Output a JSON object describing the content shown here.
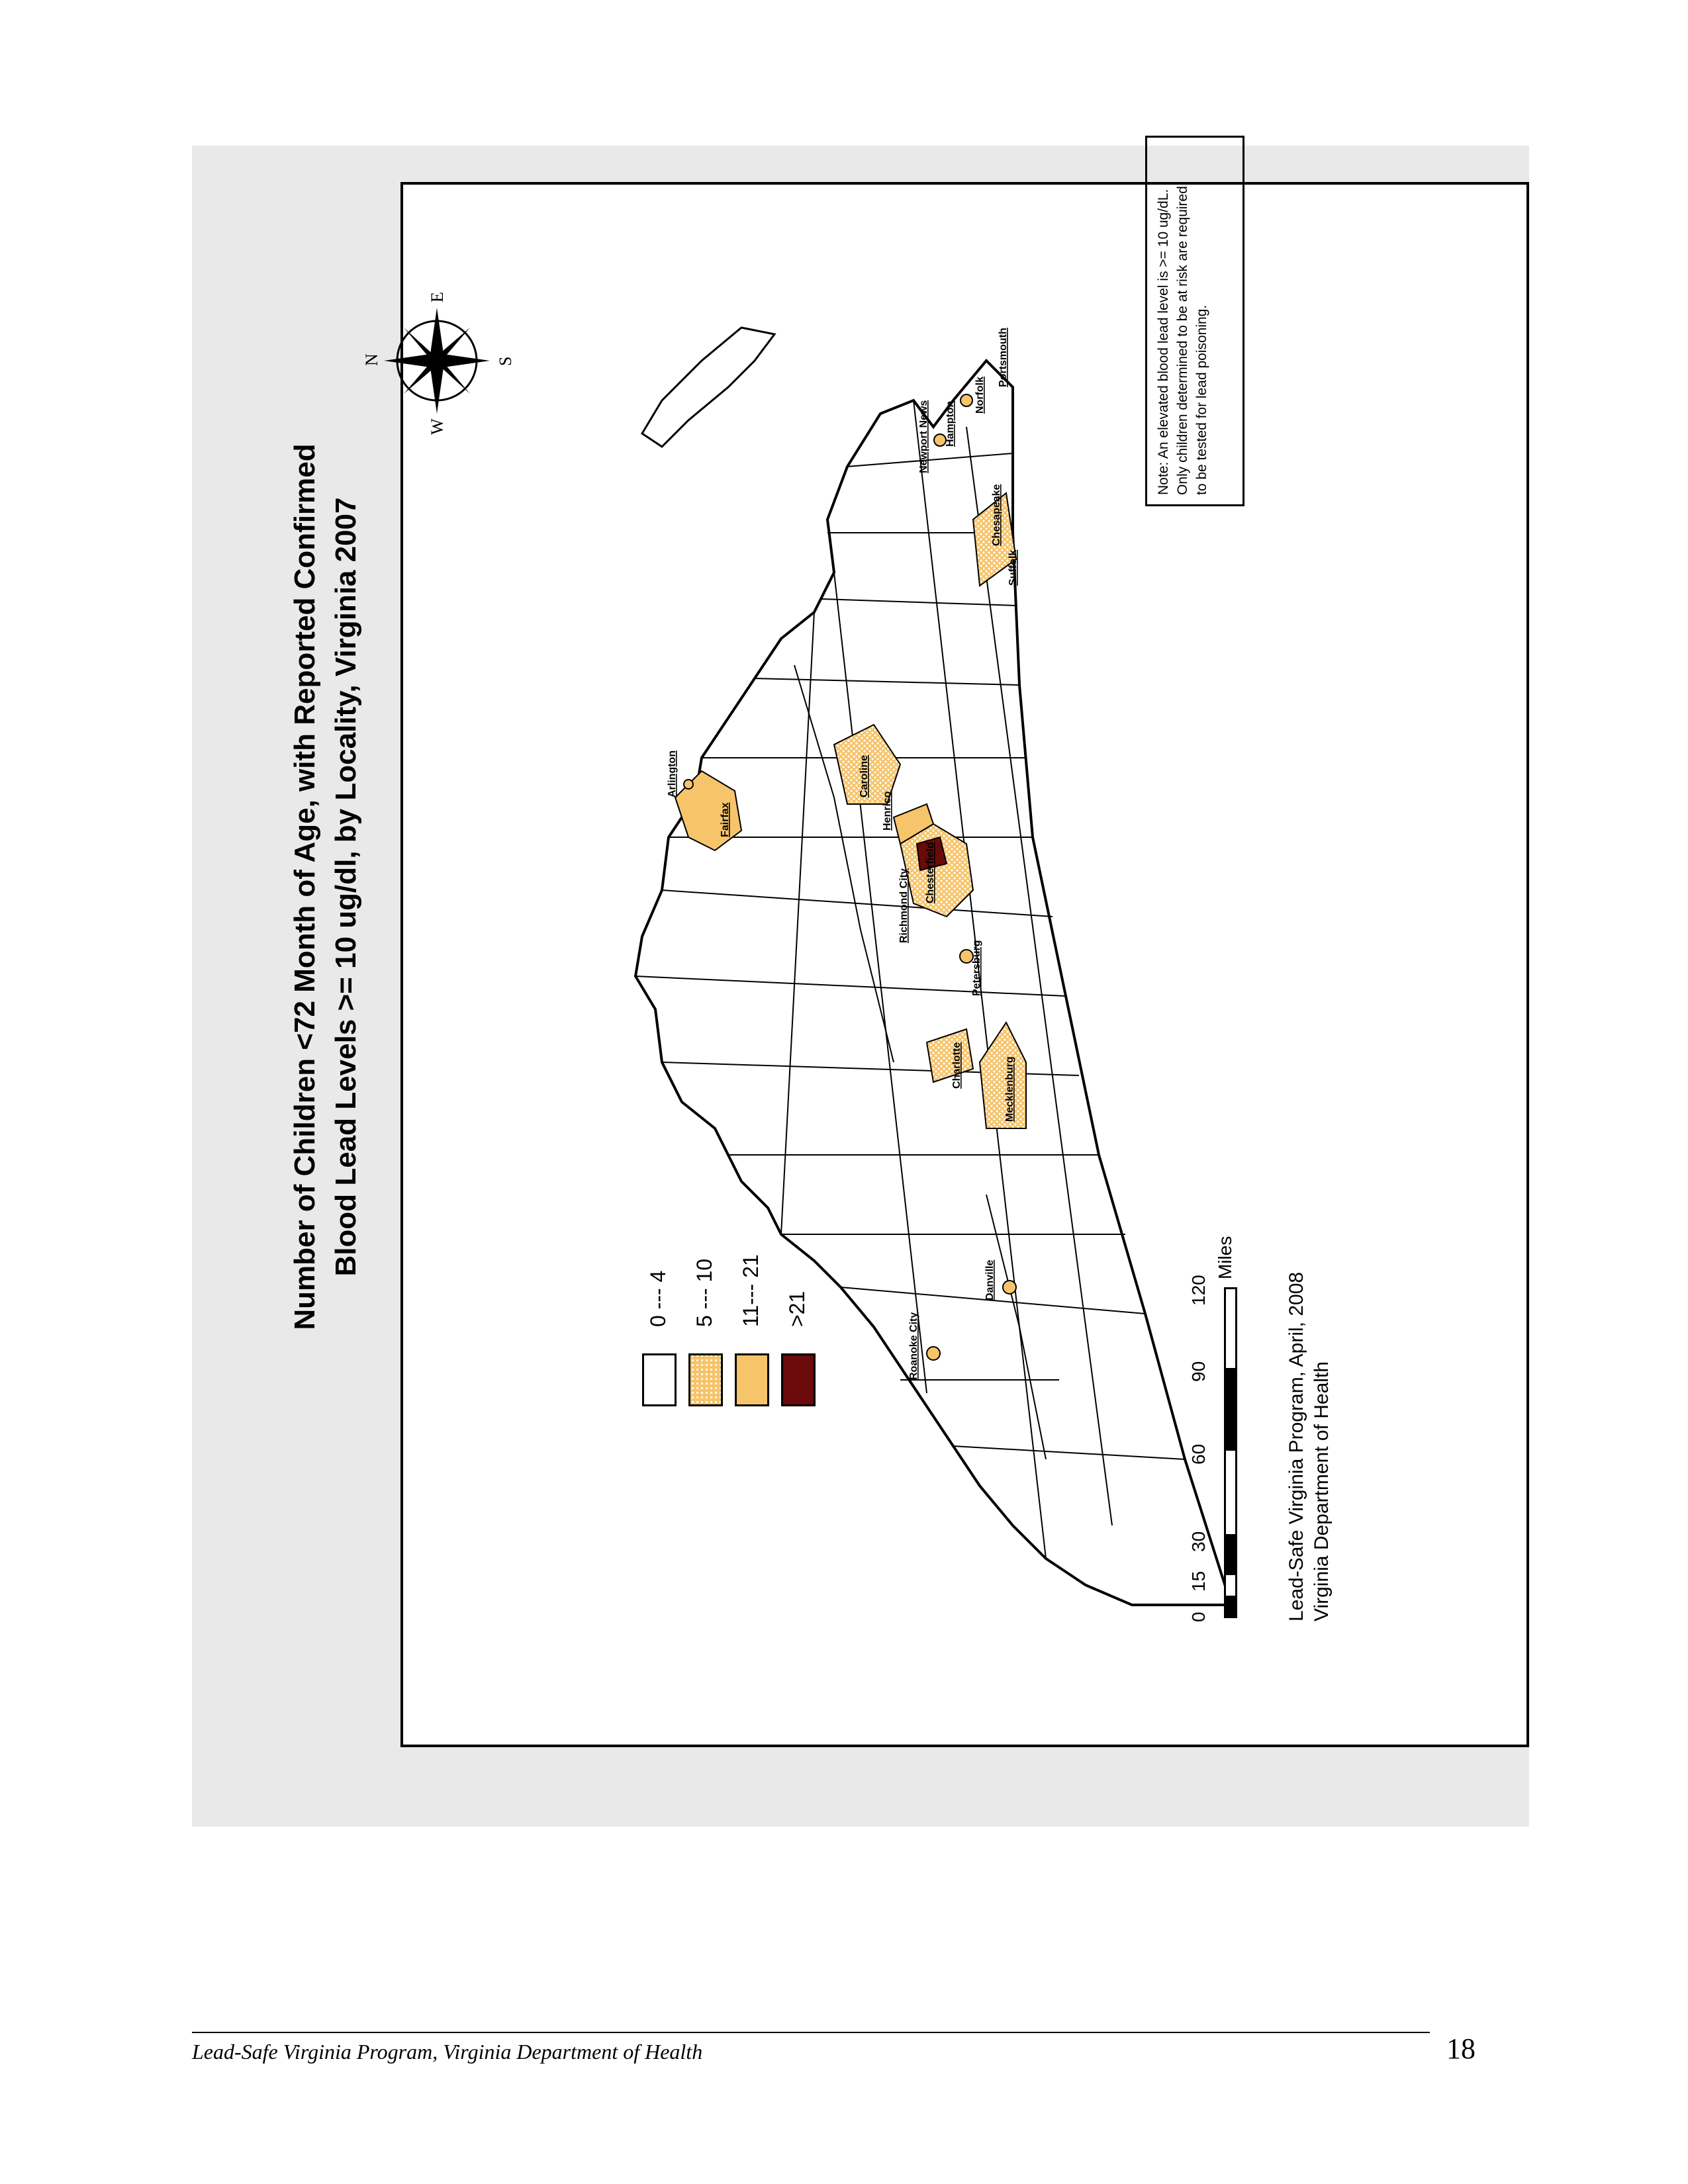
{
  "map": {
    "title_line1": "Number of Children <72 Month of Age, with Reported Confirmed",
    "title_line2": "Blood Lead Levels >= 10 ug/dl, by Locality, Virginia 2007",
    "legend": [
      {
        "label": "0 --- 4",
        "color": "#ffffff",
        "pattern": "none"
      },
      {
        "label": "5 --- 10",
        "color": "#f6c46a",
        "pattern": "dotted"
      },
      {
        "label": "11--- 21",
        "color": "#f6c46a",
        "pattern": "solid"
      },
      {
        "label": ">21",
        "color": "#6b0a0a",
        "pattern": "solid"
      }
    ],
    "localities": [
      {
        "name": "Arlington",
        "category": "11--- 21"
      },
      {
        "name": "Fairfax",
        "category": "11--- 21"
      },
      {
        "name": "Caroline",
        "category": "5 --- 10"
      },
      {
        "name": "Henrico",
        "category": "11--- 21"
      },
      {
        "name": "Richmond City",
        "category": ">21"
      },
      {
        "name": "Chesterfield",
        "category": "5 --- 10"
      },
      {
        "name": "Petersburg",
        "category": "11--- 21"
      },
      {
        "name": "Newport News",
        "category": "11--- 21"
      },
      {
        "name": "Hampton",
        "category": "11--- 21"
      },
      {
        "name": "Norfolk",
        "category": "11--- 21"
      },
      {
        "name": "Portsmouth",
        "category": "11--- 21"
      },
      {
        "name": "Chesapeake",
        "category": "5 --- 10"
      },
      {
        "name": "Suffolk",
        "category": "5 --- 10"
      },
      {
        "name": "Mecklenburg",
        "category": "5 --- 10"
      },
      {
        "name": "Charlotte",
        "category": "5 --- 10"
      },
      {
        "name": "Danville",
        "category": "11--- 21"
      },
      {
        "name": "Roanoke City",
        "category": "11--- 21"
      }
    ],
    "compass": {
      "n": "N",
      "e": "E",
      "s": "S",
      "w": "W"
    },
    "scale": {
      "ticks": [
        "0",
        "15",
        "30",
        "60",
        "90",
        "120"
      ],
      "unit": "Miles"
    },
    "credit_line1": "Lead-Safe Virginia Program, April, 2008",
    "credit_line2": "Virginia Department of Health",
    "note_line1": "Note: An elevated blood lead level is >= 10 ug/dL.",
    "note_line2": "Only children determined to be at risk are required",
    "note_line3": "to be tested for lead poisoning."
  },
  "footer": {
    "text": "Lead-Safe Virginia Program, Virginia Department of Health",
    "page_number": "18"
  }
}
